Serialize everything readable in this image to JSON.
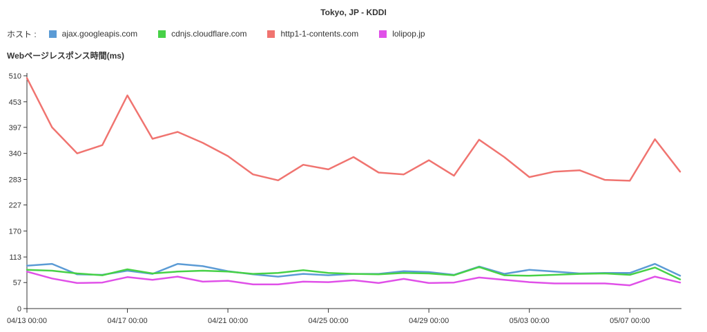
{
  "chart_data": {
    "type": "line",
    "title": "Tokyo, JP - KDDI",
    "legend_prefix": "ホスト :",
    "ylabel": "Webページレスポンス時間(ms)",
    "xlabel": "",
    "ylim": [
      0,
      510
    ],
    "yticks": [
      0,
      57,
      113,
      170,
      227,
      283,
      340,
      397,
      453,
      510
    ],
    "x_tick_labels": [
      "04/13 00:00",
      "04/17 00:00",
      "04/21 00:00",
      "04/25 00:00",
      "04/29 00:00",
      "05/03 00:00",
      "05/07 00:00"
    ],
    "x_tick_every": 4,
    "num_points": 27,
    "grid": false,
    "legend_position": "top-left",
    "series": [
      {
        "name": "ajax.googleapis.com",
        "color": "#5b9bd5",
        "values": [
          94,
          98,
          75,
          74,
          83,
          76,
          98,
          93,
          82,
          75,
          70,
          76,
          73,
          76,
          76,
          82,
          80,
          74,
          92,
          76,
          85,
          81,
          77,
          78,
          78,
          98,
          72
        ]
      },
      {
        "name": "cdnjs.cloudflare.com",
        "color": "#47d147",
        "values": [
          85,
          83,
          77,
          73,
          86,
          77,
          81,
          83,
          81,
          76,
          78,
          84,
          78,
          76,
          75,
          78,
          77,
          73,
          91,
          73,
          72,
          74,
          76,
          77,
          74,
          90,
          64
        ]
      },
      {
        "name": "http1-1-contents.com",
        "color": "#f07470",
        "values": [
          505,
          397,
          340,
          358,
          467,
          372,
          387,
          363,
          334,
          294,
          281,
          315,
          305,
          332,
          298,
          294,
          325,
          291,
          370,
          332,
          288,
          300,
          303,
          282,
          280,
          371,
          300
        ]
      },
      {
        "name": "lolipop.jp",
        "color": "#e050e8",
        "values": [
          81,
          66,
          56,
          57,
          69,
          63,
          70,
          59,
          61,
          53,
          53,
          59,
          58,
          62,
          56,
          65,
          56,
          57,
          68,
          63,
          58,
          55,
          55,
          55,
          51,
          70,
          57
        ]
      }
    ]
  }
}
